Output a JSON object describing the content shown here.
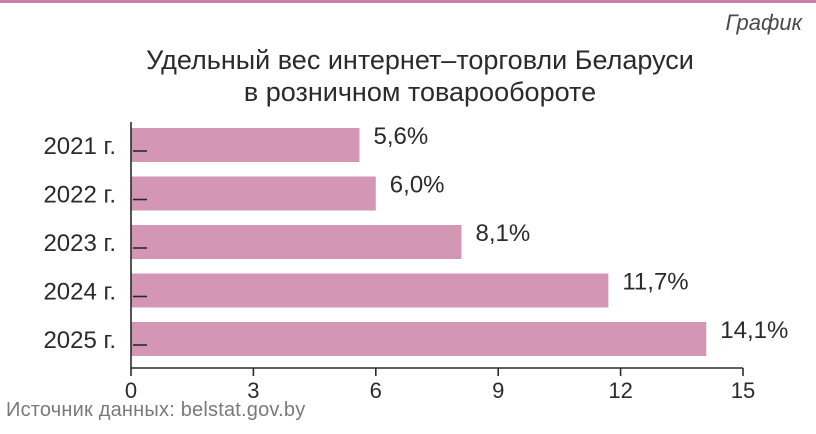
{
  "header": {
    "tag": "График",
    "title_line1": "Удельный вес интернет–торговли Беларуси",
    "title_line2": "в розничном товарообороте"
  },
  "source": "Источник данных: belstat.gov.by",
  "colors": {
    "bar": "#d496b5",
    "accent": "#c77fa6",
    "axis": "#2b2b2b",
    "text": "#2b2b2b"
  },
  "chart_data": {
    "type": "bar",
    "orientation": "horizontal",
    "categories": [
      "2021 г.",
      "2022 г.",
      "2023 г.",
      "2024 г.",
      "2025 г."
    ],
    "values": [
      5.6,
      6.0,
      8.1,
      11.7,
      14.1
    ],
    "data_labels": [
      "5,6%",
      "6,0%",
      "8,1%",
      "11,7%",
      "14,1%"
    ],
    "xlim": [
      0,
      15
    ],
    "xticks": [
      0,
      3,
      6,
      9,
      12,
      15
    ],
    "xtick_labels": [
      "0",
      "3",
      "6",
      "9",
      "12",
      "15"
    ],
    "grid": false,
    "legend": "none"
  }
}
